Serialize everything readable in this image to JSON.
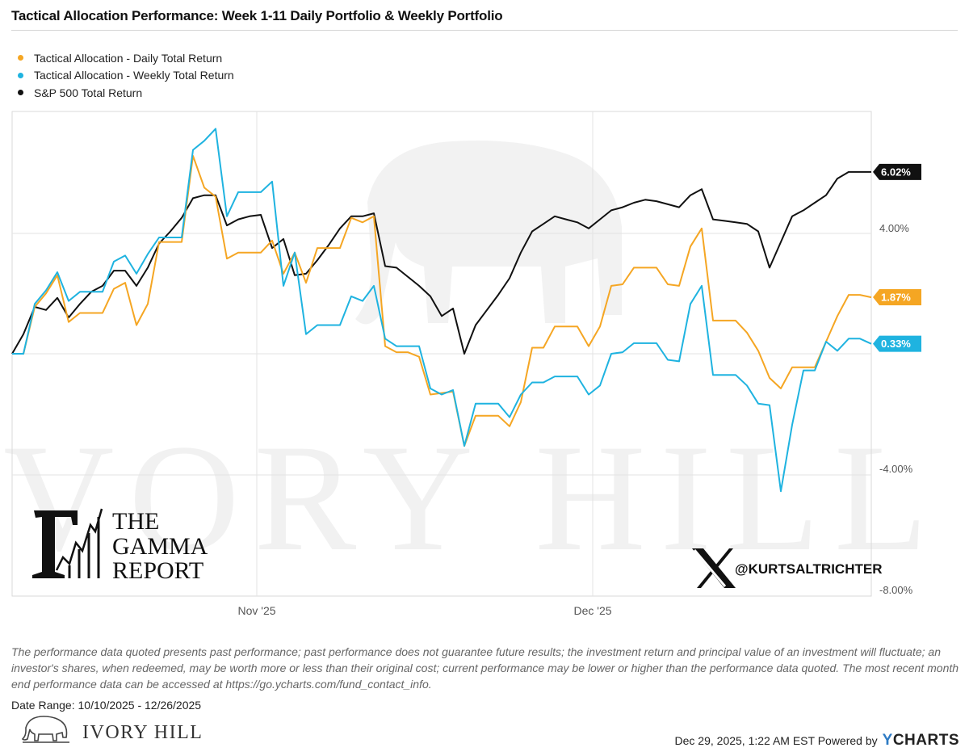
{
  "title": "Tactical Allocation Performance: Week 1-11 Daily Portfolio & Weekly Portfolio",
  "legend": [
    {
      "label": "Tactical Allocation - Daily Total Return",
      "color": "#f5a623"
    },
    {
      "label": "Tactical Allocation - Weekly Total Return",
      "color": "#1fb3e0"
    },
    {
      "label": "S&P 500 Total Return",
      "color": "#111111"
    }
  ],
  "chart_data": {
    "type": "line",
    "x_axis": {
      "labels": [
        "Nov '25",
        "Dec '25"
      ],
      "range": [
        "10/10/2025",
        "12/26/2025"
      ]
    },
    "y_axis": {
      "tick_labels": [
        "4.00%",
        "-4.00%",
        "-8.00%"
      ],
      "ticks": [
        4,
        0,
        -4,
        -8
      ],
      "range": [
        -8,
        8
      ],
      "grid": true,
      "position": "right"
    },
    "series": [
      {
        "name": "Tactical Allocation - Daily Total Return",
        "color": "#f5a623",
        "end_label": "1.87%",
        "values": [
          0.0,
          0.0,
          1.55,
          2.0,
          2.6,
          1.05,
          1.35,
          1.35,
          1.35,
          2.15,
          2.35,
          0.95,
          1.65,
          3.7,
          3.7,
          3.7,
          6.55,
          5.5,
          5.2,
          3.15,
          3.35,
          3.35,
          3.35,
          3.75,
          2.65,
          3.35,
          2.35,
          3.5,
          3.5,
          3.5,
          4.5,
          4.35,
          4.55,
          0.25,
          0.05,
          0.05,
          -0.1,
          -1.35,
          -1.3,
          -1.25,
          -3.05,
          -2.05,
          -2.05,
          -2.05,
          -2.4,
          -1.6,
          0.2,
          0.2,
          0.9,
          0.9,
          0.9,
          0.25,
          0.9,
          2.25,
          2.3,
          2.85,
          2.85,
          2.85,
          2.3,
          2.25,
          3.55,
          4.15,
          1.1,
          1.1,
          1.1,
          0.7,
          0.1,
          -0.8,
          -1.15,
          -0.45,
          -0.45,
          -0.45,
          0.4,
          1.25,
          1.95,
          1.95,
          1.87
        ]
      },
      {
        "name": "Tactical Allocation - Weekly Total Return",
        "color": "#1fb3e0",
        "end_label": "0.33%",
        "values": [
          0.0,
          0.0,
          1.65,
          2.1,
          2.7,
          1.75,
          2.05,
          2.05,
          2.05,
          3.05,
          3.25,
          2.65,
          3.3,
          3.85,
          3.85,
          3.85,
          6.75,
          7.05,
          7.45,
          4.55,
          5.35,
          5.35,
          5.35,
          5.7,
          2.25,
          3.35,
          0.65,
          0.95,
          0.95,
          0.95,
          1.9,
          1.75,
          2.25,
          0.5,
          0.25,
          0.25,
          0.25,
          -1.15,
          -1.35,
          -1.2,
          -3.05,
          -1.65,
          -1.65,
          -1.65,
          -2.1,
          -1.35,
          -0.95,
          -0.95,
          -0.75,
          -0.75,
          -0.75,
          -1.35,
          -1.05,
          0.0,
          0.05,
          0.35,
          0.35,
          0.35,
          -0.2,
          -0.25,
          1.65,
          2.25,
          -0.7,
          -0.7,
          -0.7,
          -1.05,
          -1.65,
          -1.7,
          -4.55,
          -2.35,
          -0.55,
          -0.55,
          0.4,
          0.1,
          0.5,
          0.5,
          0.33
        ]
      },
      {
        "name": "S&P 500 Total Return",
        "color": "#111111",
        "end_label": "6.02%",
        "values": [
          0.0,
          0.65,
          1.55,
          1.45,
          1.85,
          1.2,
          1.65,
          2.05,
          2.25,
          2.75,
          2.75,
          2.25,
          2.85,
          3.65,
          4.05,
          4.5,
          5.15,
          5.25,
          5.25,
          4.25,
          4.45,
          4.55,
          4.6,
          3.5,
          3.8,
          2.6,
          2.65,
          3.1,
          3.6,
          4.15,
          4.55,
          4.55,
          4.65,
          2.9,
          2.85,
          2.55,
          2.25,
          1.9,
          1.25,
          1.5,
          0.0,
          0.95,
          1.45,
          1.95,
          2.5,
          3.35,
          4.05,
          4.3,
          4.55,
          4.45,
          4.35,
          4.15,
          4.45,
          4.75,
          4.85,
          5.0,
          5.1,
          5.05,
          4.95,
          4.85,
          5.25,
          5.45,
          4.45,
          4.4,
          4.35,
          4.3,
          4.05,
          2.85,
          3.7,
          4.55,
          4.75,
          5.0,
          5.25,
          5.8,
          6.02,
          6.02,
          6.02
        ]
      }
    ]
  },
  "watermark": {
    "text": "IVORY HILL"
  },
  "gamma_logo": {
    "line1": "THE",
    "line2": "GAMMA",
    "line3": "REPORT"
  },
  "x_handle": "@KURTSALTRICHTER",
  "disclaimer": "The performance data quoted presents past performance; past performance does not guarantee future results; the investment return and principal value of an investment will fluctuate; an investor's shares, when redeemed, may be worth more or less than their original cost; current performance may be lower or higher than the performance data quoted. The most recent month end performance data can be accessed at https://go.ycharts.com/fund_contact_info.",
  "date_range": "Date Range: 10/10/2025 - 12/26/2025",
  "footer_brand": "IVORY HILL",
  "footer": {
    "timestamp": "Dec 29, 2025, 1:22 AM EST Powered by",
    "brand": "CHARTS",
    "brand_y": "Y"
  }
}
